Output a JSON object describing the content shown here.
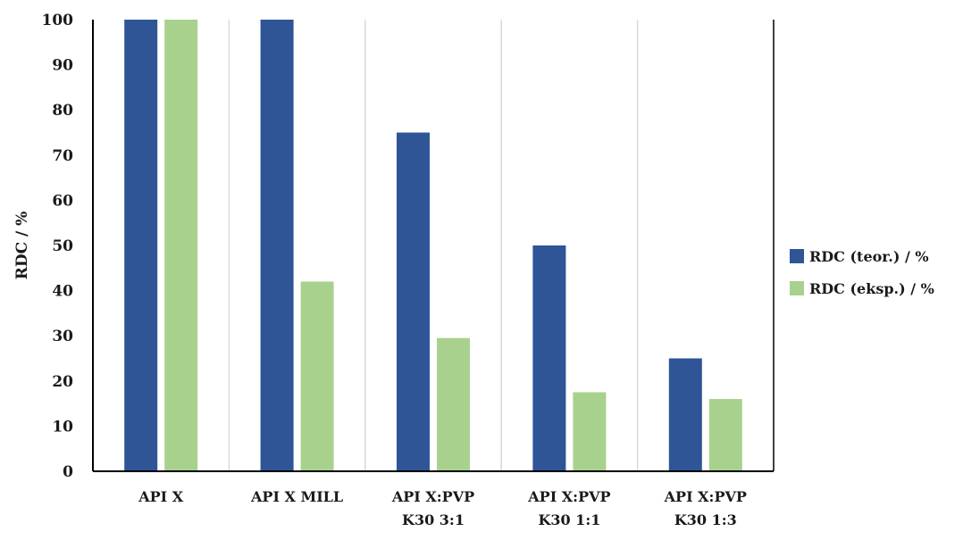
{
  "chart_data": {
    "type": "bar",
    "title": "",
    "xlabel": "",
    "ylabel": "RDC / %",
    "ylim": [
      0,
      100
    ],
    "yticks": [
      0,
      10,
      20,
      30,
      40,
      50,
      60,
      70,
      80,
      90,
      100
    ],
    "categories": [
      [
        "API X"
      ],
      [
        "API X MILL"
      ],
      [
        "API X:PVP",
        "K30 3:1"
      ],
      [
        "API X:PVP",
        "K30 1:1"
      ],
      [
        "API X:PVP",
        "K30 1:3"
      ]
    ],
    "series": [
      {
        "name": "RDC (teor.) / %",
        "color": "#2f5597",
        "values": [
          100,
          100,
          75,
          50,
          25
        ]
      },
      {
        "name": "RDC (eksp.) / %",
        "color": "#a9d18e",
        "values": [
          100,
          42,
          29.5,
          17.5,
          16
        ]
      }
    ],
    "grid": "vertical category separators",
    "legend": "right"
  }
}
